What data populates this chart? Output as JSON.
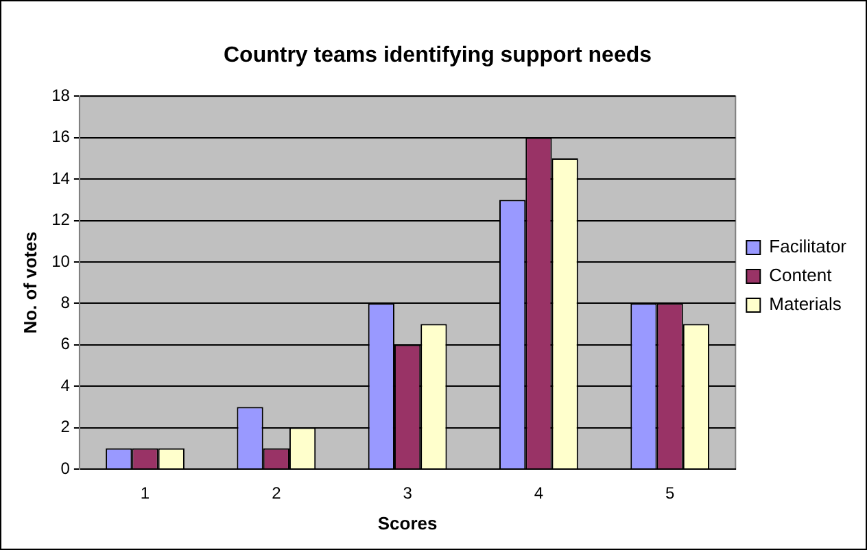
{
  "chart_data": {
    "type": "bar",
    "title": "Country teams identifying support needs",
    "xlabel": "Scores",
    "ylabel": "No. of votes",
    "categories": [
      "1",
      "2",
      "3",
      "4",
      "5"
    ],
    "series": [
      {
        "name": "Facilitator",
        "color": "#9999ff",
        "values": [
          1,
          3,
          8,
          13,
          8
        ]
      },
      {
        "name": "Content",
        "color": "#993366",
        "values": [
          1,
          1,
          6,
          16,
          8
        ]
      },
      {
        "name": "Materials",
        "color": "#ffffcc",
        "values": [
          1,
          2,
          7,
          15,
          7
        ]
      }
    ],
    "ylim": [
      0,
      18
    ],
    "yticks": [
      0,
      2,
      4,
      6,
      8,
      10,
      12,
      14,
      16,
      18
    ],
    "grid": "y",
    "legend": "right"
  }
}
